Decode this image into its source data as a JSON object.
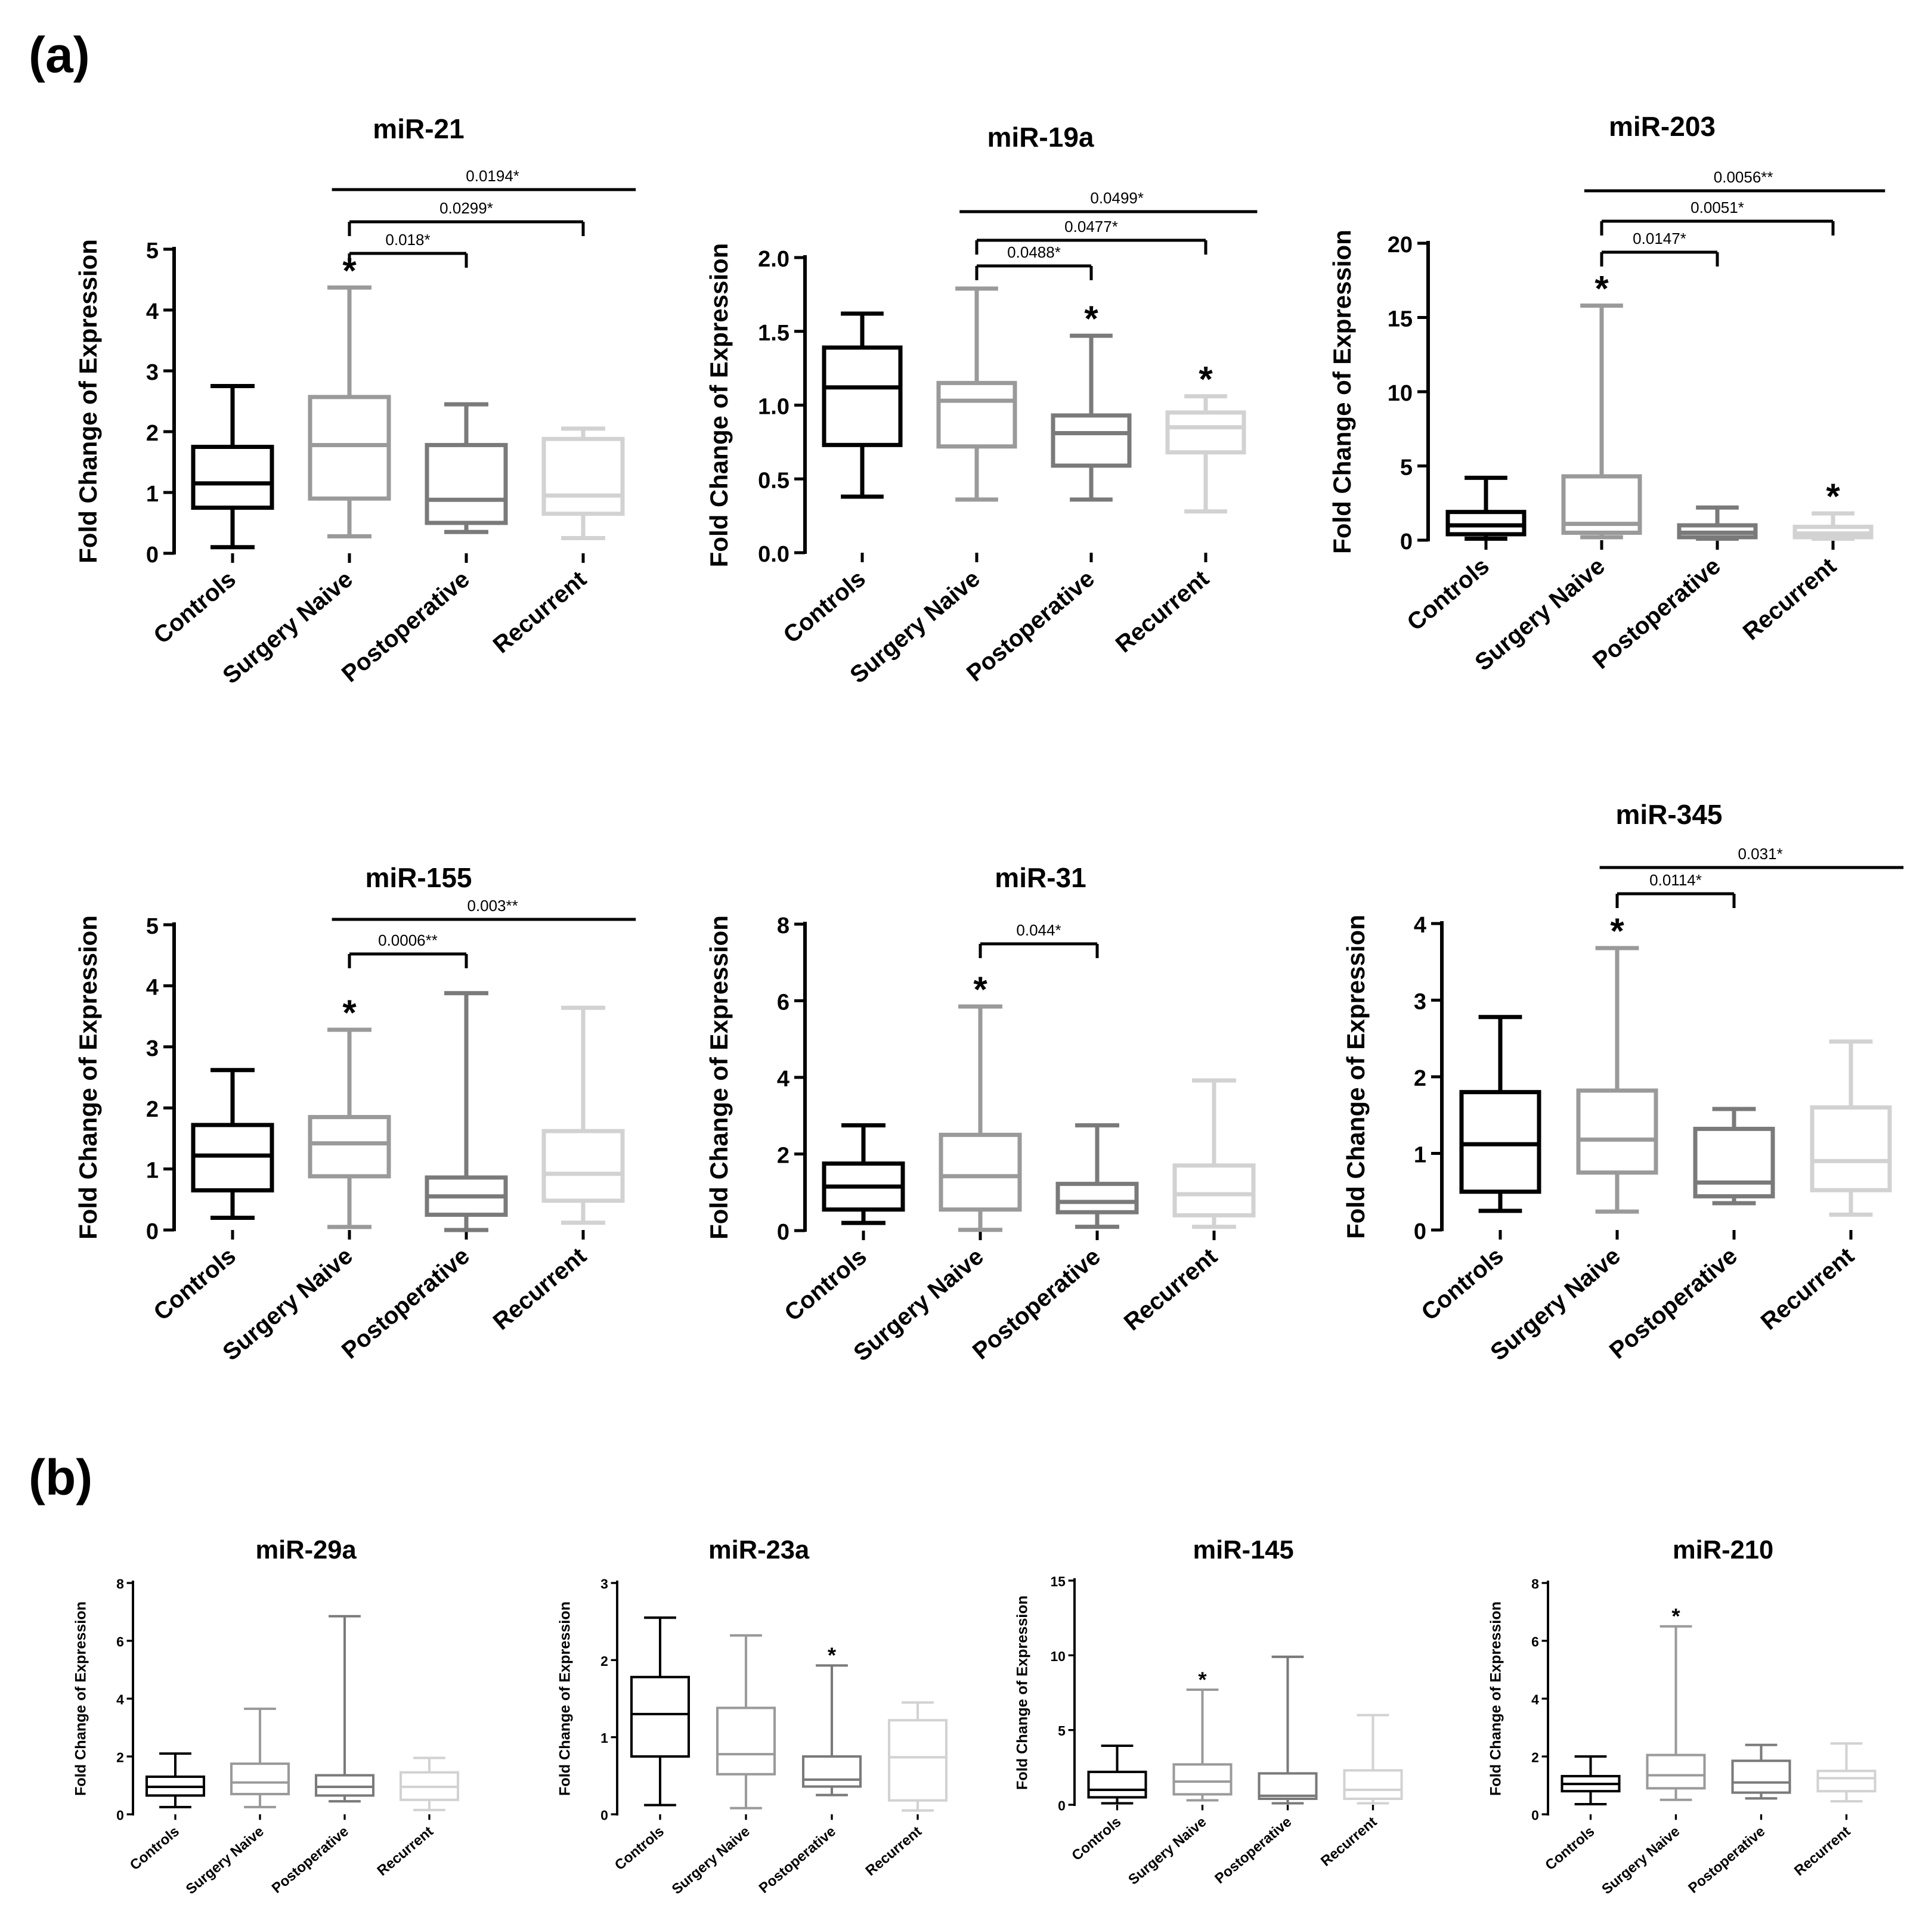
{
  "panel_labels": [
    "(a)",
    "(b)"
  ],
  "y_axis_label": "Fold Change of Expression",
  "colors": {
    "Controls": "#000000",
    "Surgery Naive": "#9a9a9a",
    "Postoperative": "#7a7a7a",
    "Recurrent": "#d2d2d2"
  },
  "chart_data": [
    {
      "type": "boxplot",
      "title": "miR-21",
      "panel": "(a)",
      "ylabel": "Fold Change of Expression",
      "ylim": [
        0,
        5
      ],
      "yticks": [
        "0",
        "1",
        "2",
        "3",
        "4",
        "5"
      ],
      "categories": [
        "Controls",
        "Surgery Naive",
        "Postoperative",
        "Recurrent"
      ],
      "boxes": [
        {
          "min": 0.1,
          "q1": 0.75,
          "median": 1.15,
          "q3": 1.75,
          "max": 2.75
        },
        {
          "min": 0.28,
          "q1": 0.9,
          "median": 1.78,
          "q3": 2.57,
          "max": 4.37
        },
        {
          "min": 0.35,
          "q1": 0.5,
          "median": 0.88,
          "q3": 1.78,
          "max": 2.45
        },
        {
          "min": 0.25,
          "q1": 0.65,
          "median": 0.95,
          "q3": 1.88,
          "max": 2.05
        }
      ],
      "stars": [
        1
      ],
      "brackets": [
        {
          "from": 1,
          "to": 2,
          "label": "0.018*",
          "tick": true
        },
        {
          "from": 1,
          "to": 3,
          "label": "0.0299*",
          "tick": true
        },
        {
          "from": 1,
          "to": 3,
          "label": "0.0194*",
          "tick": false
        }
      ]
    },
    {
      "type": "boxplot",
      "title": "miR-19a",
      "panel": "(a)",
      "ylabel": "Fold Change of Expression",
      "ylim": [
        0,
        2
      ],
      "yticks": [
        "0.0",
        "0.5",
        "1.0",
        "1.5",
        "2.0"
      ],
      "categories": [
        "Controls",
        "Surgery Naive",
        "Postoperative",
        "Recurrent"
      ],
      "boxes": [
        {
          "min": 0.38,
          "q1": 0.73,
          "median": 1.12,
          "q3": 1.39,
          "max": 1.62
        },
        {
          "min": 0.36,
          "q1": 0.72,
          "median": 1.03,
          "q3": 1.15,
          "max": 1.79
        },
        {
          "min": 0.36,
          "q1": 0.59,
          "median": 0.81,
          "q3": 0.93,
          "max": 1.47
        },
        {
          "min": 0.28,
          "q1": 0.68,
          "median": 0.85,
          "q3": 0.95,
          "max": 1.06
        }
      ],
      "stars": [
        2,
        3
      ],
      "brackets": [
        {
          "from": 1,
          "to": 2,
          "label": "0.0488*",
          "tick": true
        },
        {
          "from": 1,
          "to": 3,
          "label": "0.0477*",
          "tick": true
        },
        {
          "from": 1,
          "to": 3,
          "label": "0.0499*",
          "tick": false
        }
      ]
    },
    {
      "type": "boxplot",
      "title": "miR-203",
      "panel": "(a)",
      "ylabel": "Fold Change of Expression",
      "ylim": [
        0,
        20
      ],
      "yticks": [
        "0",
        "5",
        "10",
        "15",
        "20"
      ],
      "categories": [
        "Controls",
        "Surgery Naive",
        "Postoperative",
        "Recurrent"
      ],
      "boxes": [
        {
          "min": 0.1,
          "q1": 0.4,
          "median": 1.0,
          "q3": 1.9,
          "max": 4.2
        },
        {
          "min": 0.2,
          "q1": 0.5,
          "median": 1.1,
          "q3": 4.3,
          "max": 15.8
        },
        {
          "min": 0.1,
          "q1": 0.2,
          "median": 0.5,
          "q3": 1.0,
          "max": 2.2
        },
        {
          "min": 0.1,
          "q1": 0.2,
          "median": 0.45,
          "q3": 0.9,
          "max": 1.8
        }
      ],
      "stars": [
        1,
        3
      ],
      "brackets": [
        {
          "from": 1,
          "to": 2,
          "label": "0.0147*",
          "tick": true
        },
        {
          "from": 1,
          "to": 3,
          "label": "0.0051*",
          "tick": true
        },
        {
          "from": 1,
          "to": 3,
          "label": "0.0056**",
          "tick": false
        }
      ]
    },
    {
      "type": "boxplot",
      "title": "miR-155",
      "panel": "(a)",
      "ylabel": "Fold Change of Expression",
      "ylim": [
        0,
        5
      ],
      "yticks": [
        "0",
        "1",
        "2",
        "3",
        "4",
        "5"
      ],
      "categories": [
        "Controls",
        "Surgery Naive",
        "Postoperative",
        "Recurrent"
      ],
      "boxes": [
        {
          "min": 0.2,
          "q1": 0.65,
          "median": 1.22,
          "q3": 1.72,
          "max": 2.62
        },
        {
          "min": 0.05,
          "q1": 0.88,
          "median": 1.42,
          "q3": 1.85,
          "max": 3.28
        },
        {
          "min": 0.0,
          "q1": 0.25,
          "median": 0.55,
          "q3": 0.86,
          "max": 3.88
        },
        {
          "min": 0.12,
          "q1": 0.48,
          "median": 0.92,
          "q3": 1.62,
          "max": 3.64
        }
      ],
      "stars": [
        1
      ],
      "brackets": [
        {
          "from": 1,
          "to": 2,
          "label": "0.0006**",
          "tick": true
        },
        {
          "from": 1,
          "to": 3,
          "label": "0.003**",
          "tick": false
        }
      ]
    },
    {
      "type": "boxplot",
      "title": "miR-31",
      "panel": "(a)",
      "ylabel": "Fold Change of Expression",
      "ylim": [
        0,
        8
      ],
      "yticks": [
        "0",
        "2",
        "4",
        "6",
        "8"
      ],
      "categories": [
        "Controls",
        "Surgery Naive",
        "Postoperative",
        "Recurrent"
      ],
      "boxes": [
        {
          "min": 0.2,
          "q1": 0.55,
          "median": 1.15,
          "q3": 1.75,
          "max": 2.75
        },
        {
          "min": 0.02,
          "q1": 0.55,
          "median": 1.42,
          "q3": 2.5,
          "max": 5.85
        },
        {
          "min": 0.1,
          "q1": 0.48,
          "median": 0.75,
          "q3": 1.22,
          "max": 2.75
        },
        {
          "min": 0.1,
          "q1": 0.4,
          "median": 0.95,
          "q3": 1.7,
          "max": 3.92
        }
      ],
      "stars": [
        1
      ],
      "brackets": [
        {
          "from": 1,
          "to": 2,
          "label": "0.044*",
          "tick": true
        }
      ]
    },
    {
      "type": "boxplot",
      "title": "miR-345",
      "panel": "(a)",
      "ylabel": "Fold Change of Expression",
      "ylim": [
        0,
        4
      ],
      "yticks": [
        "0",
        "1",
        "2",
        "3",
        "4"
      ],
      "categories": [
        "Controls",
        "Surgery Naive",
        "Postoperative",
        "Recurrent"
      ],
      "boxes": [
        {
          "min": 0.25,
          "q1": 0.5,
          "median": 1.12,
          "q3": 1.8,
          "max": 2.78
        },
        {
          "min": 0.24,
          "q1": 0.75,
          "median": 1.18,
          "q3": 1.82,
          "max": 3.68
        },
        {
          "min": 0.35,
          "q1": 0.44,
          "median": 0.62,
          "q3": 1.32,
          "max": 1.58
        },
        {
          "min": 0.2,
          "q1": 0.52,
          "median": 0.9,
          "q3": 1.6,
          "max": 2.46
        }
      ],
      "stars": [
        1
      ],
      "brackets": [
        {
          "from": 1,
          "to": 2,
          "label": "0.0114*",
          "tick": true
        },
        {
          "from": 1,
          "to": 3,
          "label": "0.031*",
          "tick": false
        }
      ]
    },
    {
      "type": "boxplot",
      "title": "miR-29a",
      "panel": "(b)",
      "ylabel": "Fold Change of Expression",
      "ylim": [
        0,
        8
      ],
      "yticks": [
        "0",
        "2",
        "4",
        "6",
        "8"
      ],
      "categories": [
        "Controls",
        "Surgery Naive",
        "Postoperative",
        "Recurrent"
      ],
      "boxes": [
        {
          "min": 0.25,
          "q1": 0.65,
          "median": 0.95,
          "q3": 1.3,
          "max": 2.1
        },
        {
          "min": 0.25,
          "q1": 0.7,
          "median": 1.1,
          "q3": 1.75,
          "max": 3.65
        },
        {
          "min": 0.45,
          "q1": 0.65,
          "median": 0.95,
          "q3": 1.35,
          "max": 6.85
        },
        {
          "min": 0.15,
          "q1": 0.5,
          "median": 0.95,
          "q3": 1.45,
          "max": 1.95
        }
      ],
      "stars": [],
      "brackets": []
    },
    {
      "type": "boxplot",
      "title": "miR-23a",
      "panel": "(b)",
      "ylabel": "Fold Change of Expression",
      "ylim": [
        0,
        3
      ],
      "yticks": [
        "0",
        "1",
        "2",
        "3"
      ],
      "categories": [
        "Controls",
        "Surgery Naive",
        "Postoperative",
        "Recurrent"
      ],
      "boxes": [
        {
          "min": 0.12,
          "q1": 0.75,
          "median": 1.3,
          "q3": 1.78,
          "max": 2.55
        },
        {
          "min": 0.08,
          "q1": 0.52,
          "median": 0.78,
          "q3": 1.38,
          "max": 2.32
        },
        {
          "min": 0.25,
          "q1": 0.36,
          "median": 0.45,
          "q3": 0.75,
          "max": 1.93
        },
        {
          "min": 0.05,
          "q1": 0.18,
          "median": 0.74,
          "q3": 1.22,
          "max": 1.45
        }
      ],
      "stars": [
        2
      ],
      "brackets": []
    },
    {
      "type": "boxplot",
      "title": "miR-145",
      "panel": "(b)",
      "ylabel": "Fold Change of Expression",
      "ylim": [
        0,
        15
      ],
      "yticks": [
        "0",
        "5",
        "10",
        "15"
      ],
      "categories": [
        "Controls",
        "Surgery Naive",
        "Postoperative",
        "Recurrent"
      ],
      "boxes": [
        {
          "min": 0.1,
          "q1": 0.5,
          "median": 1.0,
          "q3": 2.2,
          "max": 3.95
        },
        {
          "min": 0.3,
          "q1": 0.7,
          "median": 1.55,
          "q3": 2.7,
          "max": 7.7
        },
        {
          "min": 0.1,
          "q1": 0.4,
          "median": 0.6,
          "q3": 2.1,
          "max": 9.9
        },
        {
          "min": 0.1,
          "q1": 0.4,
          "median": 1.0,
          "q3": 2.3,
          "max": 6.0
        }
      ],
      "stars": [
        1
      ],
      "brackets": []
    },
    {
      "type": "boxplot",
      "title": "miR-210",
      "panel": "(b)",
      "ylabel": "Fold Change of Expression",
      "ylim": [
        0,
        8
      ],
      "yticks": [
        "0",
        "2",
        "4",
        "6",
        "8"
      ],
      "categories": [
        "Controls",
        "Surgery Naive",
        "Postoperative",
        "Recurrent"
      ],
      "boxes": [
        {
          "min": 0.35,
          "q1": 0.8,
          "median": 1.05,
          "q3": 1.32,
          "max": 2.0
        },
        {
          "min": 0.5,
          "q1": 0.9,
          "median": 1.35,
          "q3": 2.05,
          "max": 6.5
        },
        {
          "min": 0.55,
          "q1": 0.75,
          "median": 1.1,
          "q3": 1.85,
          "max": 2.4
        },
        {
          "min": 0.45,
          "q1": 0.8,
          "median": 1.25,
          "q3": 1.5,
          "max": 2.45
        }
      ],
      "stars": [
        1
      ],
      "brackets": []
    }
  ]
}
